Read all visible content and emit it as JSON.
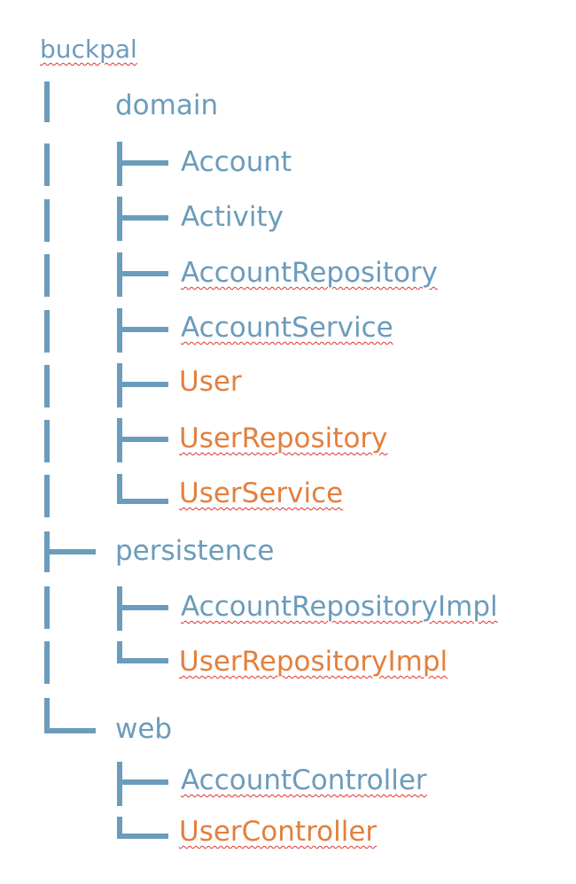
{
  "tree": {
    "root": {
      "label": "buckpal"
    },
    "domain": {
      "label": "domain",
      "children": [
        {
          "label": "Account"
        },
        {
          "label": "Activity"
        },
        {
          "label": "AccountRepository"
        },
        {
          "label": "AccountService"
        },
        {
          "label": "User"
        },
        {
          "label": "UserRepository"
        },
        {
          "label": "UserService"
        }
      ]
    },
    "persistence": {
      "label": "persistence",
      "children": [
        {
          "label": "AccountRepositoryImpl"
        },
        {
          "label": "UserRepositoryImpl"
        }
      ]
    },
    "web": {
      "label": "web",
      "children": [
        {
          "label": "AccountController"
        },
        {
          "label": "UserController"
        }
      ]
    }
  },
  "colors": {
    "existing": "#6b9cbc",
    "new": "#e2803f",
    "spellcheck": "#e03131"
  }
}
